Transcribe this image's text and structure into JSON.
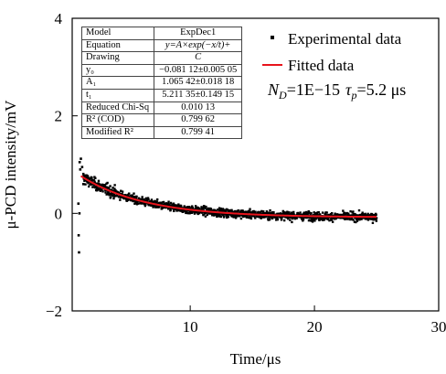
{
  "chart_data": {
    "type": "scatter",
    "xlabel": "Time/μs",
    "ylabel": "μ-PCD intensity/mV",
    "xlim": [
      0.5,
      30
    ],
    "ylim": [
      -2,
      4
    ],
    "xticks": [
      10,
      20,
      30
    ],
    "yticks": [
      -2,
      0,
      2,
      4
    ],
    "x_tick_labels": [
      "10",
      "20",
      "30"
    ],
    "y_tick_labels": [
      "−2",
      "0",
      "2",
      "4"
    ],
    "grid": false,
    "legend": {
      "placement": "top-right",
      "entries": [
        {
          "label": "Experimental data",
          "marker": "square",
          "color": "#000000"
        },
        {
          "label": "Fitted data",
          "marker": "line",
          "color": "#e8141c"
        }
      ]
    },
    "annotation": {
      "n_symbol": "N",
      "n_subscript": "D",
      "n_value": "=1E−15",
      "tau_symbol": "τ",
      "tau_subscript": "p",
      "tau_value": "=5.2 μs"
    },
    "fit": {
      "model": "ExpDec1",
      "y0": -0.08112,
      "A1": 1.06542,
      "t1": 5.21135,
      "x_start": 1.2,
      "x_end": 25
    },
    "series": [
      {
        "name": "Experimental data",
        "x_range": [
          1,
          25
        ],
        "noise_sd": 0.07,
        "early_points": [
          [
            1.0,
            0.2
          ],
          [
            1.02,
            -0.45
          ],
          [
            1.05,
            -0.8
          ],
          [
            1.08,
            0.0
          ],
          [
            1.1,
            1.05
          ],
          [
            1.15,
            0.9
          ],
          [
            1.2,
            1.12
          ],
          [
            1.3,
            0.95
          ],
          [
            1.4,
            0.6
          ]
        ]
      },
      {
        "name": "Fitted data",
        "x": [
          1.2,
          2,
          4,
          6,
          8,
          10,
          12,
          14,
          16,
          18,
          20,
          22,
          25
        ],
        "values": [
          0.74,
          0.63,
          0.42,
          0.26,
          0.16,
          0.09,
          0.04,
          0.0,
          -0.02,
          -0.04,
          -0.06,
          -0.06,
          -0.07
        ]
      }
    ],
    "fit_table": {
      "rows": [
        {
          "label": "Model",
          "value": "ExpDec1"
        },
        {
          "label": "Equation",
          "value": "y=A×exp(−x/t)+"
        },
        {
          "label": "Drawing",
          "value": "C"
        },
        {
          "label": "y₀",
          "value": "−0.081 12±0.005 05"
        },
        {
          "label": "A₁",
          "value": "1.065 42±0.018 18"
        },
        {
          "label": "t₁",
          "value": "5.211 35±0.149 15"
        },
        {
          "label": "Reduced Chi-Sq",
          "value": "0.010 13"
        },
        {
          "label": "R² (COD)",
          "value": "0.799 62"
        },
        {
          "label": "Modified R²",
          "value": "0.799 41"
        }
      ]
    }
  }
}
